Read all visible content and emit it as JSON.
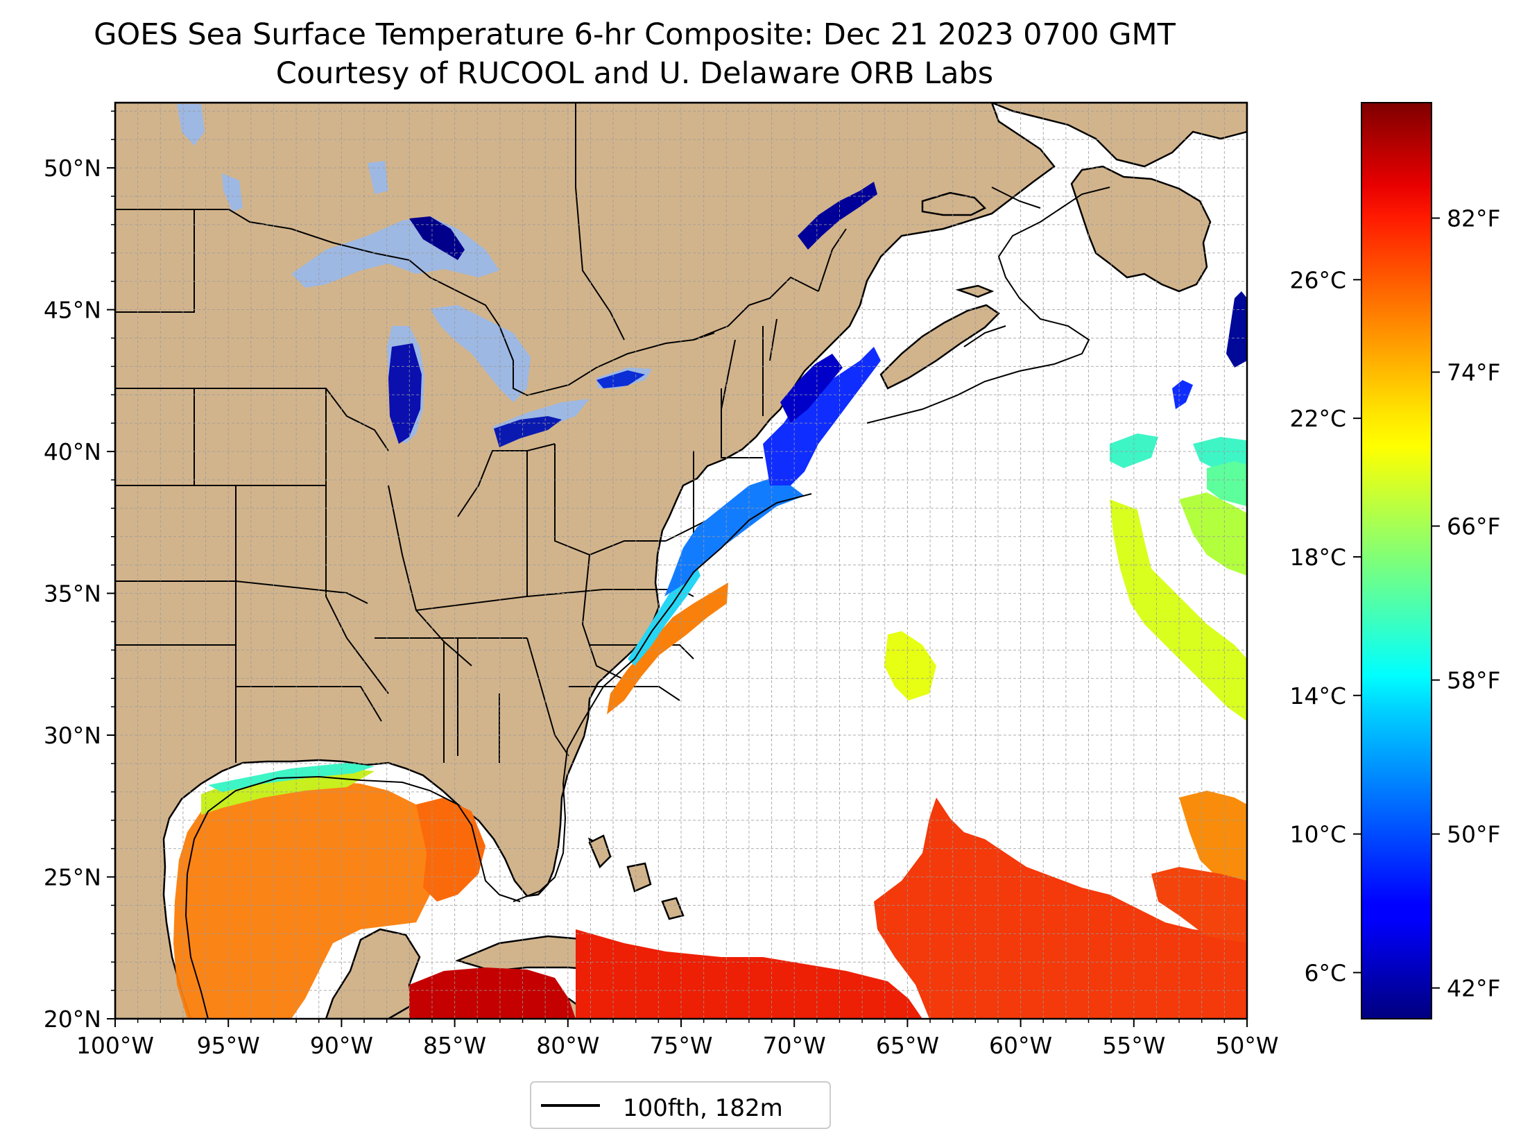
{
  "title_line1": "GOES Sea Surface Temperature 6-hr Composite: Dec 21 2023 0700 GMT",
  "title_line2": "Courtesy of RUCOOL and U. Delaware ORB Labs",
  "map": {
    "lon_range": [
      -100,
      -50
    ],
    "lat_range": [
      20,
      52.3
    ],
    "land_color": "#d2b48c",
    "lake_color": "#9db8e3",
    "ocean_color": "#ffffff",
    "gridlines": true,
    "lat_ticks": [
      {
        "value": 20,
        "label": "20°N"
      },
      {
        "value": 25,
        "label": "25°N"
      },
      {
        "value": 30,
        "label": "30°N"
      },
      {
        "value": 35,
        "label": "35°N"
      },
      {
        "value": 40,
        "label": "40°N"
      },
      {
        "value": 45,
        "label": "45°N"
      },
      {
        "value": 50,
        "label": "50°N"
      }
    ],
    "lon_ticks": [
      {
        "value": -100,
        "label": "100°W"
      },
      {
        "value": -95,
        "label": "95°W"
      },
      {
        "value": -90,
        "label": "90°W"
      },
      {
        "value": -85,
        "label": "85°W"
      },
      {
        "value": -80,
        "label": "80°W"
      },
      {
        "value": -75,
        "label": "75°W"
      },
      {
        "value": -70,
        "label": "70°W"
      },
      {
        "value": -65,
        "label": "65°W"
      },
      {
        "value": -60,
        "label": "60°W"
      },
      {
        "value": -55,
        "label": "55°W"
      },
      {
        "value": -50,
        "label": "50°W"
      }
    ]
  },
  "legend": {
    "label": "100fth, 182m",
    "position": "bottom-center",
    "line_color": "#000000"
  },
  "colorbar": {
    "colormap": "jet",
    "range_f": [
      40.4,
      88.0
    ],
    "f_ticks": [
      {
        "value": 42,
        "label": "42°F"
      },
      {
        "value": 50,
        "label": "50°F"
      },
      {
        "value": 58,
        "label": "58°F"
      },
      {
        "value": 66,
        "label": "66°F"
      },
      {
        "value": 74,
        "label": "74°F"
      },
      {
        "value": 82,
        "label": "82°F"
      }
    ],
    "c_ticks": [
      {
        "value": 6,
        "label": "6°C"
      },
      {
        "value": 10,
        "label": "10°C"
      },
      {
        "value": 14,
        "label": "14°C"
      },
      {
        "value": 18,
        "label": "18°C"
      },
      {
        "value": 22,
        "label": "22°C"
      },
      {
        "value": 26,
        "label": "26°C"
      }
    ]
  }
}
